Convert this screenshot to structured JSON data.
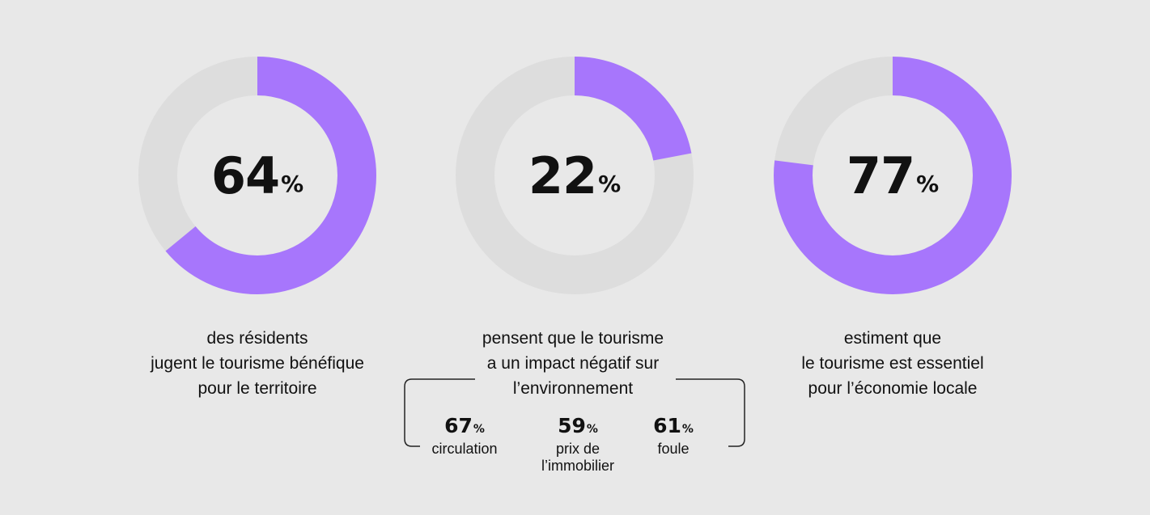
{
  "colors": {
    "fill": "#a776fc",
    "track": "#dddddd",
    "background": "#e8e8e8"
  },
  "chart_data": [
    {
      "type": "pie",
      "value": 64,
      "label": "64",
      "unit": "%",
      "caption": [
        "des résidents",
        "jugent le tourisme bénéfique",
        "pour le territoire"
      ]
    },
    {
      "type": "pie",
      "value": 22,
      "label": "22",
      "unit": "%",
      "caption": [
        "pensent que le tourisme",
        "a un impact négatif sur",
        "l’environnement"
      ],
      "breakdown": [
        {
          "value": "67",
          "unit": "%",
          "label": [
            "circulation"
          ]
        },
        {
          "value": "59",
          "unit": "%",
          "label": [
            "prix de",
            "l’immobilier"
          ]
        },
        {
          "value": "61",
          "unit": "%",
          "label": [
            "foule"
          ]
        }
      ]
    },
    {
      "type": "pie",
      "value": 77,
      "label": "77",
      "unit": "%",
      "caption": [
        "estiment que",
        "le tourisme est essentiel",
        "pour l’économie locale"
      ]
    }
  ]
}
